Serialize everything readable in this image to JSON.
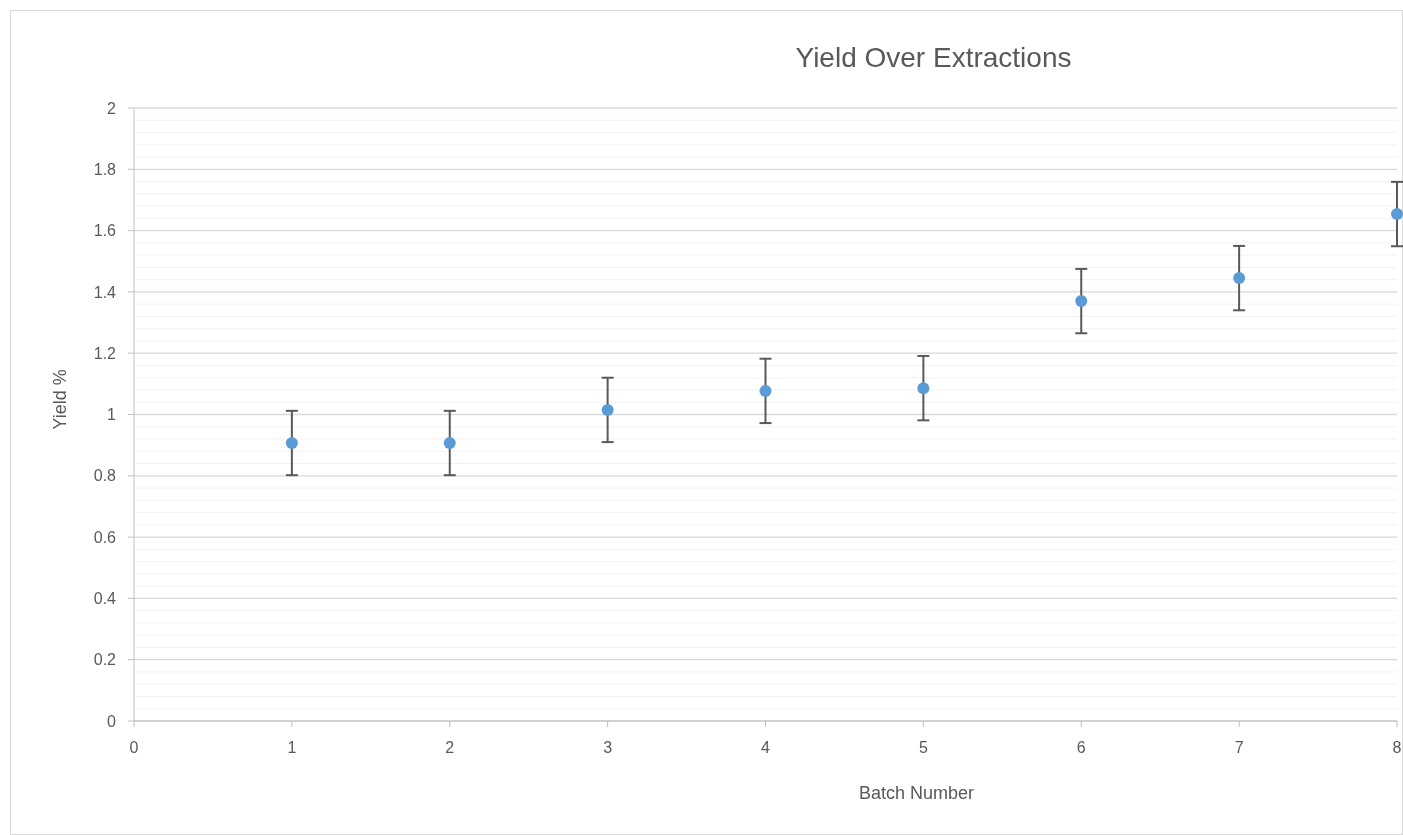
{
  "chart_data": {
    "type": "scatter",
    "title": "Yield Over Extractions",
    "xlabel": "Batch Number",
    "ylabel": "Yield %",
    "x": [
      1,
      2,
      3,
      4,
      5,
      6,
      7,
      8
    ],
    "series": [
      {
        "color": "#5b9bd5",
        "values": [
          0.907,
          0.907,
          1.015,
          1.077,
          1.086,
          1.37,
          1.445,
          1.654
        ],
        "errors": [
          0.105,
          0.105,
          0.105,
          0.105,
          0.105,
          0.105,
          0.105,
          0.105
        ]
      }
    ],
    "xlim": [
      0,
      8
    ],
    "xticks": [
      0,
      1,
      2,
      3,
      4,
      5,
      6,
      7,
      8
    ],
    "ylim": [
      0,
      2
    ],
    "yticks": [
      0,
      {
        "value": 0.04,
        "label": null
      },
      {
        "value": 0.08,
        "label": null
      },
      {
        "value": 0.12,
        "label": null
      },
      {
        "value": 0.16,
        "label": null
      },
      0.2,
      {
        "value": 0.24,
        "label": null
      },
      {
        "value": 0.28,
        "label": null
      },
      {
        "value": 0.32,
        "label": null
      },
      {
        "value": 0.36,
        "label": null
      },
      0.4,
      {
        "value": 0.44,
        "label": null
      },
      {
        "value": 0.48,
        "label": null
      },
      {
        "value": 0.52,
        "label": null
      },
      {
        "value": 0.56,
        "label": null
      },
      0.6,
      {
        "value": 0.64,
        "label": null
      },
      {
        "value": 0.68,
        "label": null
      },
      {
        "value": 0.72,
        "label": null
      },
      {
        "value": 0.76,
        "label": null
      },
      0.8,
      {
        "value": 0.84,
        "label": null
      },
      {
        "value": 0.88,
        "label": null
      },
      {
        "value": 0.92,
        "label": null
      },
      {
        "value": 0.96,
        "label": null
      },
      1,
      {
        "value": 1.04,
        "label": null
      },
      {
        "value": 1.08,
        "label": null
      },
      {
        "value": 1.12,
        "label": null
      },
      {
        "value": 1.16,
        "label": null
      },
      1.2,
      {
        "value": 1.24,
        "label": null
      },
      {
        "value": 1.28,
        "label": null
      },
      {
        "value": 1.32,
        "label": null
      },
      {
        "value": 1.36,
        "label": null
      },
      1.4,
      {
        "value": 1.44,
        "label": null
      },
      {
        "value": 1.48,
        "label": null
      },
      {
        "value": 1.52,
        "label": null
      },
      {
        "value": 1.56,
        "label": null
      },
      1.6,
      {
        "value": 1.64,
        "label": null
      },
      {
        "value": 1.68,
        "label": null
      },
      {
        "value": 1.72,
        "label": null
      },
      {
        "value": 1.76,
        "label": null
      },
      1.8,
      {
        "value": 1.84,
        "label": null
      },
      {
        "value": 1.88,
        "label": null
      },
      {
        "value": 1.92,
        "label": null
      },
      {
        "value": 1.96,
        "label": null
      },
      2
    ],
    "grid": "y",
    "marker": "circle"
  }
}
